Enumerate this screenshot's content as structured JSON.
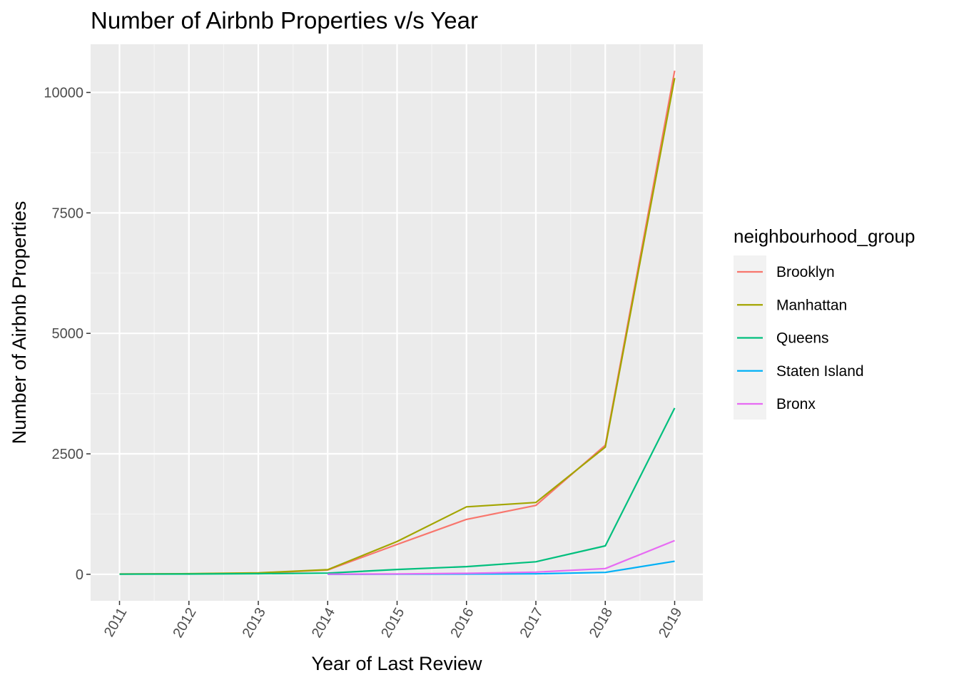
{
  "chart_data": {
    "type": "line",
    "title": "Number of Airbnb Properties v/s Year",
    "xlabel": "Year of Last Review",
    "ylabel": "Number of Airbnb Properties",
    "x": [
      "2011",
      "2012",
      "2013",
      "2014",
      "2015",
      "2016",
      "2017",
      "2018",
      "2019"
    ],
    "ylim": [
      -550,
      11000
    ],
    "yticks": [
      "0",
      "2500",
      "5000",
      "7500",
      "10000"
    ],
    "ytick_values": [
      0,
      2500,
      5000,
      7500,
      10000
    ],
    "grid": true,
    "legend_title": "neighbourhood_group",
    "legend_position": "right",
    "series": [
      {
        "name": "Brooklyn",
        "color": "#F8766D",
        "x": [
          "2011",
          "2012",
          "2013",
          "2014",
          "2015",
          "2016",
          "2017",
          "2018",
          "2019"
        ],
        "values": [
          5,
          10,
          25,
          90,
          620,
          1140,
          1430,
          2680,
          10450
        ]
      },
      {
        "name": "Manhattan",
        "color": "#A3A500",
        "x": [
          "2011",
          "2012",
          "2013",
          "2014",
          "2015",
          "2016",
          "2017",
          "2018",
          "2019"
        ],
        "values": [
          5,
          12,
          30,
          95,
          680,
          1400,
          1490,
          2640,
          10300
        ]
      },
      {
        "name": "Queens",
        "color": "#00BF7D",
        "x": [
          "2011",
          "2012",
          "2013",
          "2014",
          "2015",
          "2016",
          "2017",
          "2018",
          "2019"
        ],
        "values": [
          2,
          5,
          12,
          25,
          100,
          160,
          260,
          590,
          3450
        ]
      },
      {
        "name": "Staten Island",
        "color": "#00B0F6",
        "x": [
          "2014",
          "2015",
          "2016",
          "2017",
          "2018",
          "2019"
        ],
        "values": [
          0,
          2,
          5,
          10,
          40,
          270
        ]
      },
      {
        "name": "Bronx",
        "color": "#E76BF3",
        "x": [
          "2014",
          "2015",
          "2016",
          "2017",
          "2018",
          "2019"
        ],
        "values": [
          2,
          8,
          20,
          45,
          120,
          700
        ]
      }
    ]
  }
}
